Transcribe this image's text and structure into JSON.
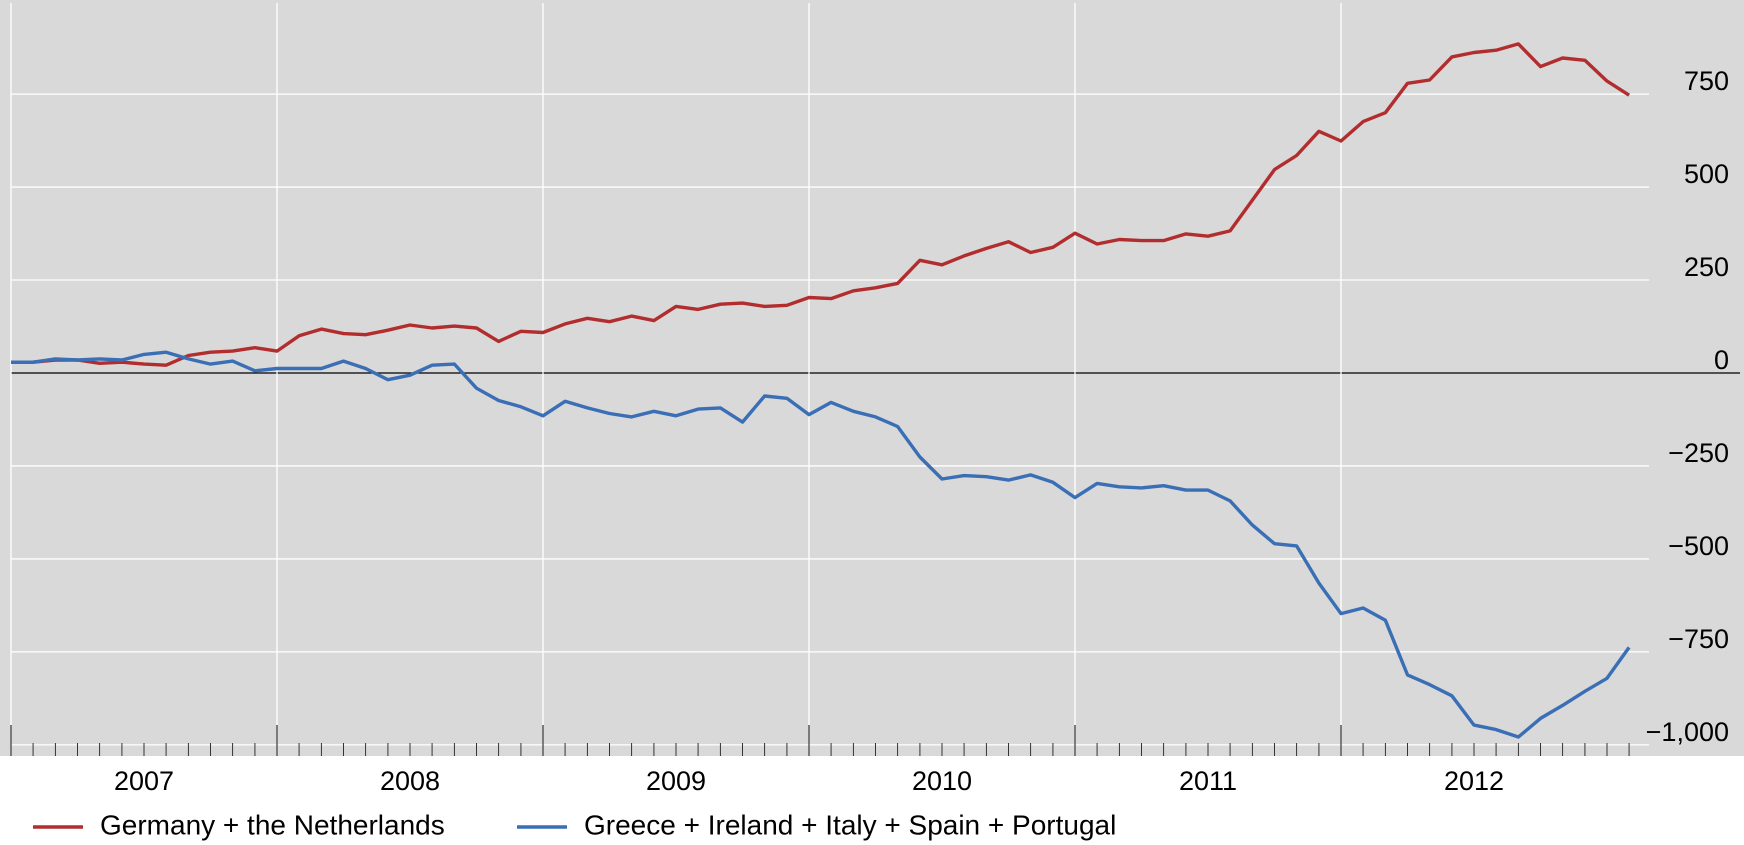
{
  "chart_data": {
    "type": "line",
    "x": [
      2007,
      2007.083,
      2007.167,
      2007.25,
      2007.333,
      2007.417,
      2007.5,
      2007.583,
      2007.667,
      2007.75,
      2007.833,
      2007.917,
      2008,
      2008.083,
      2008.167,
      2008.25,
      2008.333,
      2008.417,
      2008.5,
      2008.583,
      2008.667,
      2008.75,
      2008.833,
      2008.917,
      2009,
      2009.083,
      2009.167,
      2009.25,
      2009.333,
      2009.417,
      2009.5,
      2009.583,
      2009.667,
      2009.75,
      2009.833,
      2009.917,
      2010,
      2010.083,
      2010.167,
      2010.25,
      2010.333,
      2010.417,
      2010.5,
      2010.583,
      2010.667,
      2010.75,
      2010.833,
      2010.917,
      2011,
      2011.083,
      2011.167,
      2011.25,
      2011.333,
      2011.417,
      2011.5,
      2011.583,
      2011.667,
      2011.75,
      2011.833,
      2011.917,
      2012,
      2012.083,
      2012.167,
      2012.25,
      2012.333,
      2012.417,
      2012.5,
      2012.583,
      2012.667,
      2012.75,
      2012.833,
      2012.917,
      2013,
      2013.083
    ],
    "series": [
      {
        "name": "Germany + the Netherlands",
        "color": "#b22d2e",
        "values": [
          29,
          29,
          35,
          35,
          26,
          29,
          24,
          21,
          47,
          56,
          59,
          68,
          59,
          100,
          118,
          106,
          103,
          115,
          129,
          121,
          126,
          121,
          85,
          112,
          109,
          132,
          147,
          138,
          153,
          141,
          179,
          171,
          185,
          188,
          179,
          182,
          203,
          200,
          221,
          229,
          241,
          303,
          291,
          315,
          335,
          353,
          324,
          338,
          376,
          347,
          359,
          356,
          356,
          374,
          368,
          382,
          465,
          547,
          585,
          650,
          624,
          676,
          700,
          779,
          788,
          850,
          862,
          868,
          885,
          824,
          847,
          841,
          785,
          747
        ]
      },
      {
        "name": "Greece + Ireland + Italy + Spain + Portugal",
        "color": "#3a6eb5",
        "values": [
          29,
          29,
          38,
          35,
          38,
          35,
          50,
          56,
          38,
          24,
          32,
          6,
          12,
          12,
          12,
          32,
          12,
          -18,
          -6,
          21,
          24,
          -41,
          -74,
          -91,
          -115,
          -76,
          -94,
          -109,
          -118,
          -103,
          -115,
          -97,
          -94,
          -132,
          -62,
          -68,
          -112,
          -79,
          -103,
          -118,
          -144,
          -226,
          -285,
          -276,
          -279,
          -288,
          -274,
          -294,
          -335,
          -297,
          -306,
          -309,
          -303,
          -315,
          -315,
          -344,
          -409,
          -459,
          -465,
          -565,
          -647,
          -632,
          -665,
          -812,
          -838,
          -868,
          -947,
          -959,
          -979,
          -929,
          -894,
          -856,
          -821,
          -738
        ]
      }
    ],
    "xlim": [
      2007,
      2013.5
    ],
    "xticks": [
      {
        "value": 2007,
        "label": "2007"
      },
      {
        "value": 2008,
        "label": "2008"
      },
      {
        "value": 2009,
        "label": "2009"
      },
      {
        "value": 2010,
        "label": "2010"
      },
      {
        "value": 2011,
        "label": "2011"
      },
      {
        "value": 2012,
        "label": "2012"
      }
    ],
    "ylim": [
      -1030,
      995
    ],
    "yticks": [
      {
        "value": -1000,
        "label": "−1,000"
      },
      {
        "value": -750,
        "label": "−750"
      },
      {
        "value": -500,
        "label": "−500"
      },
      {
        "value": -250,
        "label": "−250"
      },
      0,
      250,
      500,
      750
    ],
    "grid": true,
    "legend": "bottom"
  }
}
